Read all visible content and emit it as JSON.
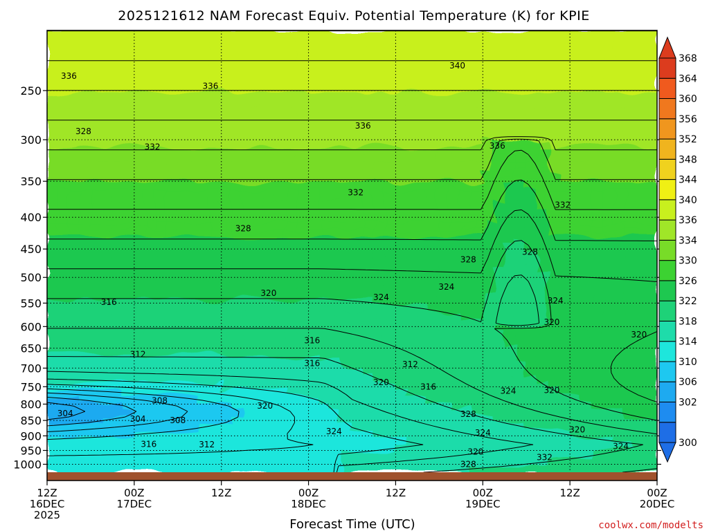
{
  "chart_data": {
    "type": "heatmap",
    "title": "2025121612 NAM Forecast Equiv. Potential Temperature (K) for KPIE",
    "xlabel": "Forecast Time (UTC)",
    "ylabel": "",
    "credit": "coolwx.com/modelts",
    "x_ticks": [
      {
        "hour": 0,
        "lines": [
          "12Z",
          "16DEC",
          "2025"
        ]
      },
      {
        "hour": 12,
        "lines": [
          "00Z",
          "17DEC"
        ]
      },
      {
        "hour": 24,
        "lines": [
          "12Z"
        ]
      },
      {
        "hour": 36,
        "lines": [
          "00Z",
          "18DEC"
        ]
      },
      {
        "hour": 48,
        "lines": [
          "12Z"
        ]
      },
      {
        "hour": 60,
        "lines": [
          "00Z",
          "19DEC"
        ]
      },
      {
        "hour": 72,
        "lines": [
          "12Z"
        ]
      },
      {
        "hour": 84,
        "lines": [
          "00Z",
          "20DEC"
        ]
      }
    ],
    "x_range_hours": [
      0,
      84
    ],
    "y_scale": "log",
    "y_range_hpa": [
      1030,
      200
    ],
    "y_ticks": [
      "250",
      "300",
      "350",
      "400",
      "450",
      "500",
      "550",
      "600",
      "650",
      "700",
      "750",
      "800",
      "850",
      "900",
      "950",
      "1000"
    ],
    "colorbar": {
      "levels": [
        300,
        302,
        306,
        310,
        314,
        318,
        322,
        326,
        330,
        334,
        336,
        340,
        344,
        348,
        352,
        356,
        360,
        364,
        368
      ],
      "labels": [
        "300",
        "302",
        "306",
        "310",
        "314",
        "318",
        "322",
        "326",
        "330",
        "334",
        "336",
        "340",
        "344",
        "348",
        "352",
        "356",
        "360",
        "364",
        "368"
      ],
      "colors": [
        "#1e6ee6",
        "#1e8cf0",
        "#1eaaf0",
        "#1ec8f0",
        "#1ee6dc",
        "#1edcaa",
        "#1ed278",
        "#1ec850",
        "#3cd232",
        "#78dc28",
        "#a0e628",
        "#c8f01e",
        "#f0f014",
        "#f0d21e",
        "#f0b41e",
        "#f0961e",
        "#f0781e",
        "#f05a1e",
        "#dc3c1e"
      ]
    },
    "contour_interval_K": 2,
    "contour_labels": [
      {
        "value": 340,
        "text": "340",
        "hour": 56.5,
        "p": 228
      },
      {
        "value": 336,
        "text": "336",
        "hour": 3.0,
        "p": 237
      },
      {
        "value": 336,
        "text": "336",
        "hour": 22.5,
        "p": 246
      },
      {
        "value": 336,
        "text": "336",
        "hour": 43.5,
        "p": 285
      },
      {
        "value": 336,
        "text": "336",
        "hour": 62.0,
        "p": 307
      },
      {
        "value": 332,
        "text": "332",
        "hour": 14.5,
        "p": 308
      },
      {
        "value": 332,
        "text": "332",
        "hour": 42.5,
        "p": 365
      },
      {
        "value": 332,
        "text": "332",
        "hour": 71.0,
        "p": 382
      },
      {
        "value": 328,
        "text": "328",
        "hour": 5.0,
        "p": 291
      },
      {
        "value": 328,
        "text": "328",
        "hour": 27.0,
        "p": 417
      },
      {
        "value": 328,
        "text": "328",
        "hour": 58.0,
        "p": 468
      },
      {
        "value": 328,
        "text": "328",
        "hour": 66.5,
        "p": 455
      },
      {
        "value": 324,
        "text": "324",
        "hour": 46.0,
        "p": 538
      },
      {
        "value": 324,
        "text": "324",
        "hour": 55.0,
        "p": 518
      },
      {
        "value": 324,
        "text": "324",
        "hour": 70.0,
        "p": 545
      },
      {
        "value": 320,
        "text": "320",
        "hour": 30.5,
        "p": 530
      },
      {
        "value": 320,
        "text": "320",
        "hour": 69.5,
        "p": 590
      },
      {
        "value": 320,
        "text": "320",
        "hour": 81.5,
        "p": 618
      },
      {
        "value": 316,
        "text": "316",
        "hour": 8.5,
        "p": 548
      },
      {
        "value": 316,
        "text": "316",
        "hour": 36.5,
        "p": 632
      },
      {
        "value": 316,
        "text": "316",
        "hour": 36.5,
        "p": 688
      },
      {
        "value": 312,
        "text": "312",
        "hour": 12.5,
        "p": 665
      },
      {
        "value": 312,
        "text": "312",
        "hour": 50.0,
        "p": 690
      },
      {
        "value": 316,
        "text": "316",
        "hour": 52.5,
        "p": 750
      },
      {
        "value": 320,
        "text": "320",
        "hour": 46.0,
        "p": 738
      },
      {
        "value": 320,
        "text": "320",
        "hour": 30.0,
        "p": 805
      },
      {
        "value": 324,
        "text": "324",
        "hour": 63.5,
        "p": 762
      },
      {
        "value": 320,
        "text": "320",
        "hour": 69.5,
        "p": 760
      },
      {
        "value": 308,
        "text": "308",
        "hour": 15.5,
        "p": 790
      },
      {
        "value": 304,
        "text": "304",
        "hour": 2.5,
        "p": 828
      },
      {
        "value": 304,
        "text": "304",
        "hour": 12.5,
        "p": 845
      },
      {
        "value": 308,
        "text": "308",
        "hour": 18.0,
        "p": 850
      },
      {
        "value": 328,
        "text": "328",
        "hour": 58.0,
        "p": 830
      },
      {
        "value": 324,
        "text": "324",
        "hour": 39.5,
        "p": 885
      },
      {
        "value": 324,
        "text": "324",
        "hour": 60.0,
        "p": 890
      },
      {
        "value": 320,
        "text": "320",
        "hour": 73.0,
        "p": 880
      },
      {
        "value": 316,
        "text": "316",
        "hour": 14.0,
        "p": 928
      },
      {
        "value": 312,
        "text": "312",
        "hour": 22.0,
        "p": 930
      },
      {
        "value": 320,
        "text": "320",
        "hour": 59.0,
        "p": 955
      },
      {
        "value": 324,
        "text": "324",
        "hour": 79.0,
        "p": 935
      },
      {
        "value": 332,
        "text": "332",
        "hour": 68.5,
        "p": 975
      },
      {
        "value": 328,
        "text": "328",
        "hour": 58.0,
        "p": 1000
      }
    ]
  }
}
